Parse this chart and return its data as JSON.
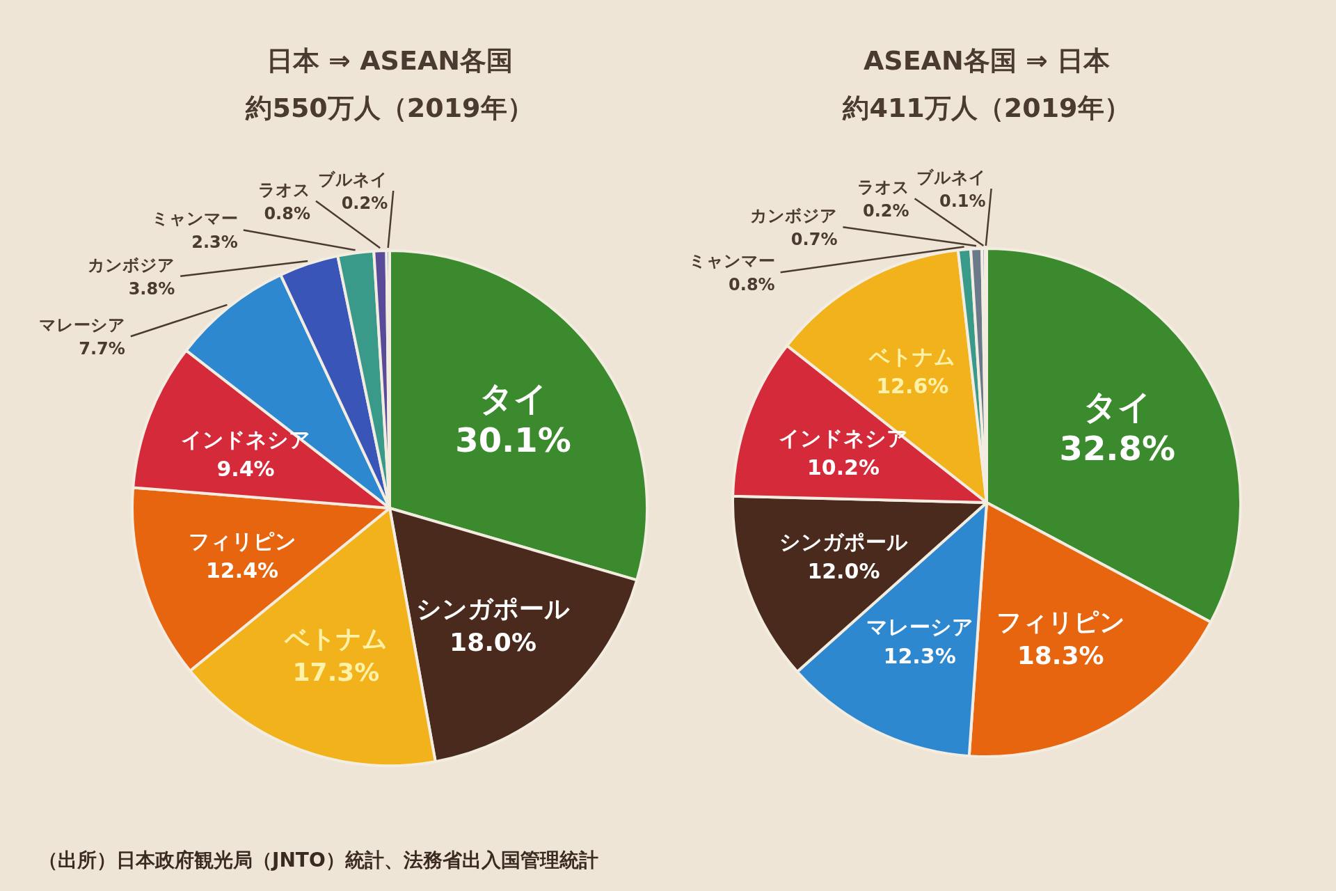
{
  "chart_data": [
    {
      "type": "pie",
      "title": "日本 ⇒ ASEAN各国",
      "subtitle": "約550万人（2019年）",
      "categories": [
        "タイ",
        "シンガポール",
        "ベトナム",
        "フィリピン",
        "インドネシア",
        "マレーシア",
        "カンボジア",
        "ミャンマー",
        "ラオス",
        "ブルネイ"
      ],
      "values": [
        30.1,
        18.0,
        17.3,
        12.4,
        9.4,
        7.7,
        3.8,
        2.3,
        0.8,
        0.2
      ],
      "value_labels": [
        "30.1%",
        "18.0%",
        "17.3%",
        "12.4%",
        "9.4%",
        "7.7%",
        "3.8%",
        "2.3%",
        "0.8%",
        "0.2%"
      ],
      "colors": [
        "#3c8a2e",
        "#4a2a1c",
        "#f2b21c",
        "#e8650f",
        "#d42a3a",
        "#2d88d0",
        "#3a55b8",
        "#3a9a8a",
        "#5a4a9a",
        "#4a6ac0"
      ],
      "annotations": [
        "（出所）日本政府観光局（JNTO）統計、法務省出入国管理統計"
      ]
    },
    {
      "type": "pie",
      "title": "ASEAN各国 ⇒ 日本",
      "subtitle": "約411万人（2019年）",
      "categories": [
        "タイ",
        "フィリピン",
        "マレーシア",
        "シンガポール",
        "インドネシア",
        "ベトナム",
        "ミャンマー",
        "カンボジア",
        "ラオス",
        "ブルネイ"
      ],
      "values": [
        32.8,
        18.3,
        12.3,
        12.0,
        10.2,
        12.6,
        0.8,
        0.7,
        0.2,
        0.1
      ],
      "value_labels": [
        "32.8%",
        "18.3%",
        "12.3%",
        "12.0%",
        "10.2%",
        "12.6%",
        "0.8%",
        "0.7%",
        "0.2%",
        "0.1%"
      ],
      "colors": [
        "#3c8a2e",
        "#e8650f",
        "#2d88d0",
        "#4a2a1c",
        "#d42a3a",
        "#f2b21c",
        "#3a9a8a",
        "#6a7a8a",
        "#5a4a9a",
        "#4a6ac0"
      ]
    }
  ]
}
